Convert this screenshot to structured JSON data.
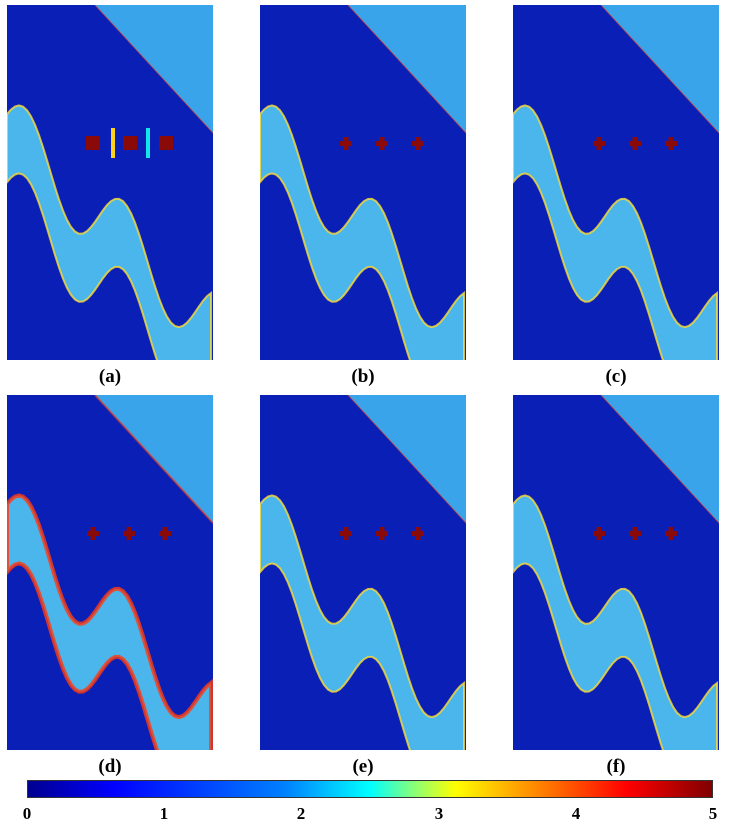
{
  "panels": [
    {
      "id": "a",
      "label": "(a)"
    },
    {
      "id": "b",
      "label": "(b)"
    },
    {
      "id": "c",
      "label": "(c)"
    },
    {
      "id": "d",
      "label": "(d)"
    },
    {
      "id": "e",
      "label": "(e)"
    },
    {
      "id": "f",
      "label": "(f)"
    }
  ],
  "colorbar": {
    "ticks": [
      "0",
      "1",
      "2",
      "3",
      "4",
      "5"
    ],
    "min": 0,
    "max": 5
  },
  "colors": {
    "background": "#0a1fb5",
    "triangle": "#3fb3f0",
    "band": "#56d1f4",
    "band_edge_hot": "#ff3b10",
    "marker": "#8a0a0a",
    "bar_yellow": "#ffd21a",
    "bar_cyan": "#15e6e6"
  }
}
